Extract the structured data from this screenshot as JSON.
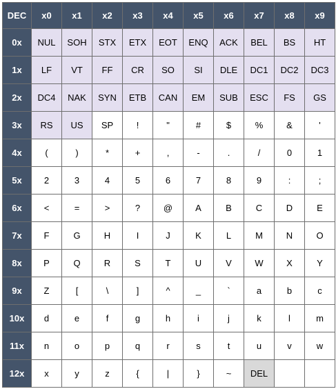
{
  "corner_label": "DEC",
  "colors": {
    "header_bg": "#44546a",
    "header_text": "#ffffff",
    "control_bg": "#e4dff0",
    "del_bg": "#d9d9d9",
    "cell_bg": "#ffffff",
    "border": "#6e6e6e"
  },
  "columns": [
    "x0",
    "x1",
    "x2",
    "x3",
    "x4",
    "x5",
    "x6",
    "x7",
    "x8",
    "x9"
  ],
  "rows": [
    {
      "label": "0x",
      "cells": [
        "NUL",
        "SOH",
        "STX",
        "ETX",
        "EOT",
        "ENQ",
        "ACK",
        "BEL",
        "BS",
        "HT"
      ]
    },
    {
      "label": "1x",
      "cells": [
        "LF",
        "VT",
        "FF",
        "CR",
        "SO",
        "SI",
        "DLE",
        "DC1",
        "DC2",
        "DC3"
      ]
    },
    {
      "label": "2x",
      "cells": [
        "DC4",
        "NAK",
        "SYN",
        "ETB",
        "CAN",
        "EM",
        "SUB",
        "ESC",
        "FS",
        "GS"
      ]
    },
    {
      "label": "3x",
      "cells": [
        "RS",
        "US",
        "SP",
        "!",
        "\"",
        "#",
        "$",
        "%",
        "&",
        "'"
      ]
    },
    {
      "label": "4x",
      "cells": [
        "(",
        ")",
        "*",
        "+",
        ",",
        "-",
        ".",
        "/",
        "0",
        "1"
      ]
    },
    {
      "label": "5x",
      "cells": [
        "2",
        "3",
        "4",
        "5",
        "6",
        "7",
        "8",
        "9",
        ":",
        ";"
      ]
    },
    {
      "label": "6x",
      "cells": [
        "<",
        "=",
        ">",
        "?",
        "@",
        "A",
        "B",
        "C",
        "D",
        "E"
      ]
    },
    {
      "label": "7x",
      "cells": [
        "F",
        "G",
        "H",
        "I",
        "J",
        "K",
        "L",
        "M",
        "N",
        "O"
      ]
    },
    {
      "label": "8x",
      "cells": [
        "P",
        "Q",
        "R",
        "S",
        "T",
        "U",
        "V",
        "W",
        "X",
        "Y"
      ]
    },
    {
      "label": "9x",
      "cells": [
        "Z",
        "[",
        "\\",
        "]",
        "^",
        "_",
        "`",
        "a",
        "b",
        "c"
      ]
    },
    {
      "label": "10x",
      "cells": [
        "d",
        "e",
        "f",
        "g",
        "h",
        "i",
        "j",
        "k",
        "l",
        "m"
      ]
    },
    {
      "label": "11x",
      "cells": [
        "n",
        "o",
        "p",
        "q",
        "r",
        "s",
        "t",
        "u",
        "v",
        "w"
      ]
    },
    {
      "label": "12x",
      "cells": [
        "x",
        "y",
        "z",
        "{",
        "|",
        "}",
        "~",
        "DEL"
      ]
    }
  ]
}
